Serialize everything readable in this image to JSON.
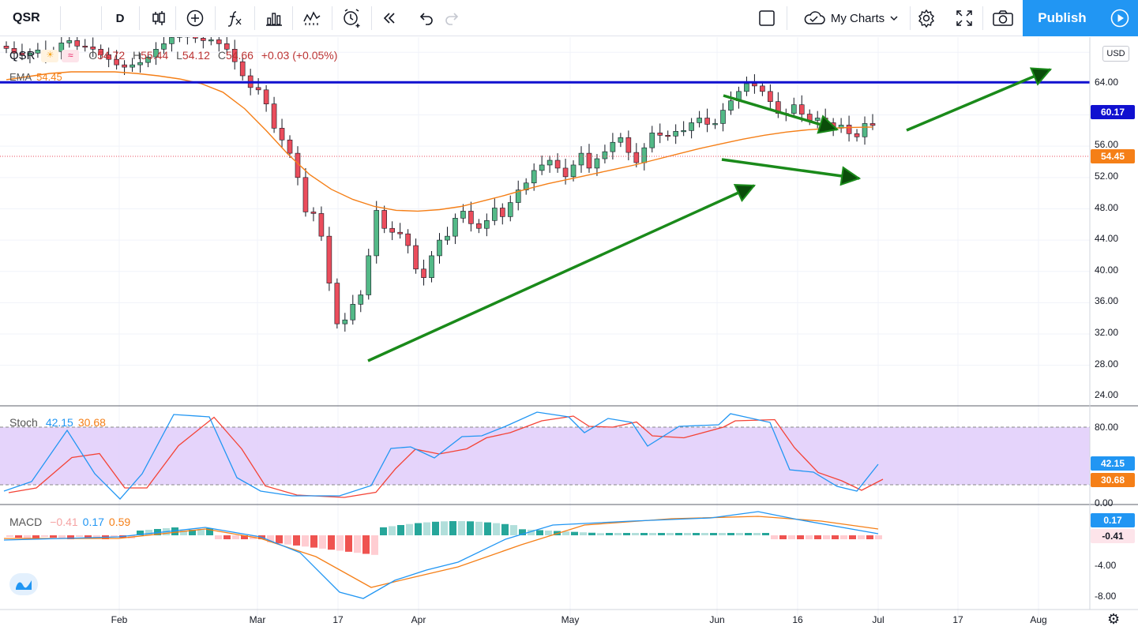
{
  "toolbar": {
    "symbol": "QSR",
    "interval": "D",
    "layout_label": "My Charts",
    "publish_label": "Publish"
  },
  "legend": {
    "symbol": "QSR",
    "open_label": "O",
    "open": "54.72",
    "high_label": "H",
    "high": "55.44",
    "low_label": "L",
    "low": "54.12",
    "close_label": "C",
    "close": "54.66",
    "change": "+0.03 (+0.05%)",
    "ema_label": "EMA",
    "ema_value": "54.45"
  },
  "stoch": {
    "label": "Stoch",
    "k": "42.15",
    "d": "30.68"
  },
  "macd": {
    "label": "MACD",
    "hist": "−0.41",
    "macd": "0.17",
    "signal": "0.59"
  },
  "price_axis": {
    "currency": "USD",
    "ticks": [
      "64.00",
      "56.00",
      "52.00",
      "48.00",
      "44.00",
      "40.00",
      "36.00",
      "32.00",
      "28.00",
      "24.00"
    ],
    "resistance_label": "60.17",
    "last_price_label": "54.45"
  },
  "stoch_axis": {
    "ticks": [
      "80.00",
      "0.00"
    ],
    "k_label": "42.15",
    "d_label": "30.68"
  },
  "macd_axis": {
    "ticks": [
      "-4.00",
      "-8.00"
    ],
    "macd_label": "0.17",
    "hist_label": "-0.41"
  },
  "time_axis": [
    "Feb",
    "Mar",
    "17",
    "Apr",
    "May",
    "Jun",
    "16",
    "Jul",
    "17",
    "Aug"
  ],
  "colors": {
    "up": "#53b987",
    "down": "#eb4d5c",
    "ema": "#f57f17",
    "resistance": "#1010d0",
    "arrows": "#1a8a1a",
    "stoch_k": "#2196f3",
    "stoch_d": "#f44336",
    "publish": "#2196f3"
  },
  "chart_data": {
    "type": "candlestick",
    "symbol": "QSR",
    "interval": "D",
    "x_labels": [
      "Feb",
      "Mar",
      "17",
      "Apr",
      "May",
      "Jun",
      "16",
      "Jul",
      "17",
      "Aug"
    ],
    "y_range": [
      24,
      66
    ],
    "horizontal_line": 60.17,
    "price_series": [
      64.5,
      63.9,
      63.6,
      63.9,
      64.3,
      63.6,
      64.1,
      65.2,
      65.5,
      64.8,
      64.7,
      64.4,
      63.7,
      63.1,
      62.4,
      62.1,
      62.4,
      62.7,
      63.4,
      64.4,
      65.1,
      65.9,
      66.1,
      66.0,
      65.8,
      65.5,
      65.6,
      65.1,
      64.4,
      62.8,
      61.0,
      59.5,
      59.2,
      57.4,
      54.3,
      52.8,
      51.1,
      48.0,
      43.6,
      43.4,
      40.5,
      34.5,
      29.3,
      29.8,
      31.8,
      33.0,
      38.0,
      43.8,
      41.5,
      41.0,
      40.8,
      39.3,
      36.3,
      35.2,
      38.0,
      40.0,
      40.5,
      42.8,
      43.7,
      42.1,
      41.5,
      42.5,
      44.1,
      43.0,
      44.8,
      46.4,
      47.3,
      48.9,
      49.6,
      50.2,
      49.2,
      48.1,
      49.6,
      51.1,
      49.2,
      50.4,
      51.3,
      52.5,
      53.1,
      51.2,
      49.9,
      51.8,
      53.7,
      53.4,
      53.3,
      53.9,
      54.0,
      55.0,
      55.6,
      54.8,
      54.9,
      56.6,
      57.8,
      59.0,
      60.0,
      59.7,
      59.0,
      57.7,
      56.2,
      56.2,
      57.3,
      56.1,
      55.3,
      55.6,
      55.0,
      54.3,
      54.7,
      53.6,
      53.2,
      54.9,
      54.66
    ],
    "ema_series": [
      60.5,
      60.9,
      61.3,
      61.5,
      61.5,
      61.5,
      61.3,
      61.0,
      60.6,
      60.0,
      58.9,
      56.8,
      54.0,
      51.0,
      48.4,
      46.5,
      45.2,
      44.3,
      43.8,
      43.7,
      43.9,
      44.3,
      45.0,
      45.7,
      46.5,
      47.2,
      47.8,
      48.4,
      49.0,
      49.6,
      50.3,
      51.0,
      51.7,
      52.3,
      52.9,
      53.4,
      53.8,
      54.1,
      54.3,
      54.4,
      54.45
    ],
    "stoch_k": 42.15,
    "stoch_d": 30.68,
    "stoch_bands": [
      80,
      20
    ],
    "macd": 0.17,
    "macd_signal": 0.59,
    "macd_hist": -0.41
  }
}
